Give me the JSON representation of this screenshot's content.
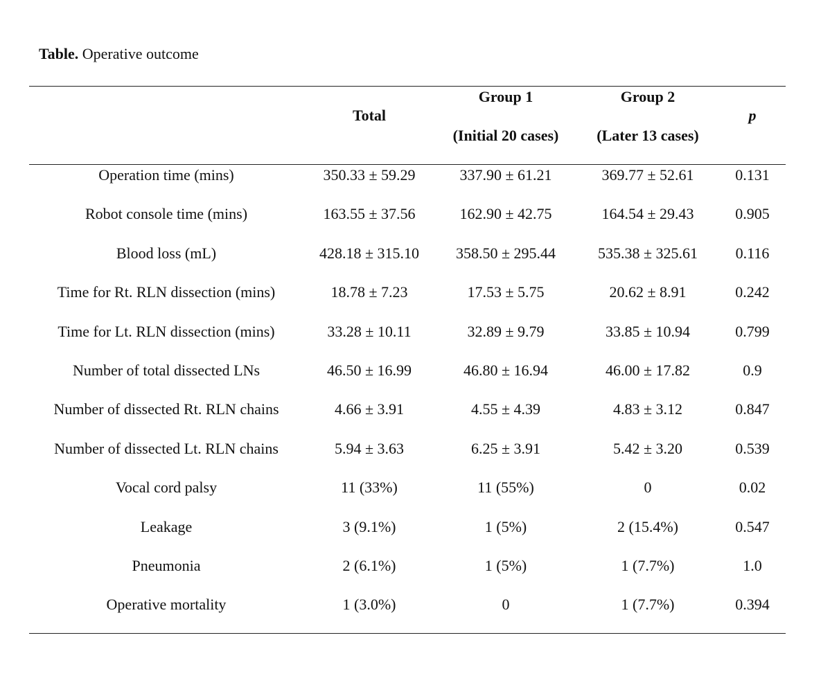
{
  "caption": {
    "label": "Table.",
    "title": "Operative outcome"
  },
  "table": {
    "headers": {
      "total": "Total",
      "group1_line1": "Group 1",
      "group1_line2": "(Initial 20 cases)",
      "group2_line1": "Group 2",
      "group2_line2": "(Later 13 cases)",
      "p": "p"
    },
    "rows": [
      {
        "label": "Operation time (mins)",
        "total": "350.33 ± 59.29",
        "group1": "337.90 ± 61.21",
        "group2": "369.77 ± 52.61",
        "p": "0.131"
      },
      {
        "label": "Robot console time (mins)",
        "total": "163.55 ± 37.56",
        "group1": "162.90 ± 42.75",
        "group2": "164.54 ± 29.43",
        "p": "0.905"
      },
      {
        "label": "Blood loss (mL)",
        "total": "428.18 ± 315.10",
        "group1": "358.50 ± 295.44",
        "group2": "535.38 ± 325.61",
        "p": "0.116"
      },
      {
        "label": "Time for Rt. RLN dissection (mins)",
        "total": "18.78 ± 7.23",
        "group1": "17.53 ± 5.75",
        "group2": "20.62 ± 8.91",
        "p": "0.242"
      },
      {
        "label": "Time for Lt. RLN dissection (mins)",
        "total": "33.28 ± 10.11",
        "group1": "32.89 ± 9.79",
        "group2": "33.85 ± 10.94",
        "p": "0.799"
      },
      {
        "label": "Number of total dissected LNs",
        "total": "46.50 ± 16.99",
        "group1": "46.80 ± 16.94",
        "group2": "46.00 ± 17.82",
        "p": "0.9"
      },
      {
        "label": "Number of dissected Rt. RLN chains",
        "total": "4.66 ± 3.91",
        "group1": "4.55 ± 4.39",
        "group2": "4.83 ± 3.12",
        "p": "0.847"
      },
      {
        "label": "Number of dissected Lt. RLN chains",
        "total": "5.94 ± 3.63",
        "group1": "6.25 ± 3.91",
        "group2": "5.42 ± 3.20",
        "p": "0.539"
      },
      {
        "label": "Vocal cord palsy",
        "total": "11 (33%)",
        "group1": "11 (55%)",
        "group2": "0",
        "p": "0.02"
      },
      {
        "label": "Leakage",
        "total": "3 (9.1%)",
        "group1": "1 (5%)",
        "group2": "2 (15.4%)",
        "p": "0.547"
      },
      {
        "label": "Pneumonia",
        "total": "2 (6.1%)",
        "group1": "1 (5%)",
        "group2": "1 (7.7%)",
        "p": "1.0"
      },
      {
        "label": "Operative mortality",
        "total": "1 (3.0%)",
        "group1": "0",
        "group2": "1 (7.7%)",
        "p": "0.394"
      }
    ]
  }
}
